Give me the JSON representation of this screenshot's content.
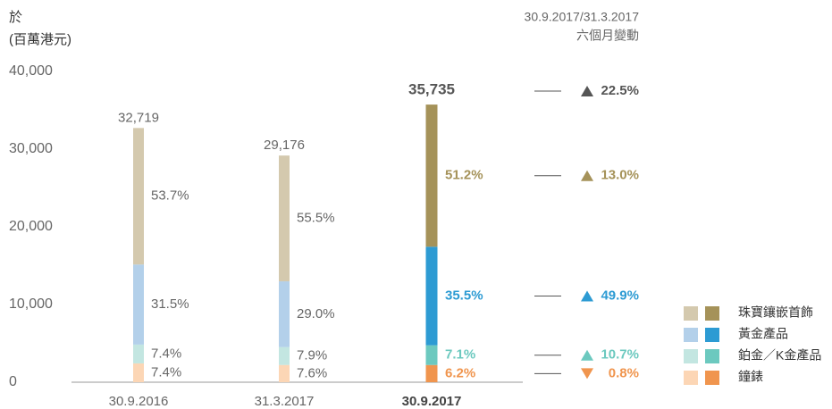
{
  "chart_data": {
    "type": "stacked_bar",
    "ylabel": [
      "於",
      "(百萬港元)"
    ],
    "categories": [
      "30.9.2016",
      "31.3.2017",
      "30.9.2017"
    ],
    "highlight": 2,
    "ylim": [
      0,
      40000
    ],
    "yticks": [
      0,
      {
        "value": 10000,
        "label": "10,000"
      },
      {
        "value": 20000,
        "label": "20,000"
      },
      {
        "value": 30000,
        "label": "30,000"
      },
      {
        "value": 40000,
        "label": "40,000"
      }
    ],
    "totals": {
      "values": [
        32719,
        29176,
        35735
      ],
      "value_labels": [
        "32,719",
        "29,176",
        "35,735"
      ],
      "change": 22.5,
      "change_label": "22.5%",
      "color": "#555555"
    },
    "change_title": [
      "30.9.2017/31.3.2017",
      "六個月變動"
    ],
    "series": [
      {
        "name": "鐘錶",
        "color": "#fcd6b5",
        "highlight_color": "#f0954e",
        "values": [
          7.4,
          7.6,
          6.2
        ],
        "value_labels": [
          "7.4%",
          "7.6%",
          "6.2%"
        ],
        "change": -0.8,
        "change_label": "0.8%"
      },
      {
        "name": "鉑金／K金產品",
        "color": "#c3e6e1",
        "highlight_color": "#6cc9bf",
        "values": [
          7.4,
          7.9,
          7.1
        ],
        "value_labels": [
          "7.4%",
          "7.9%",
          "7.1%"
        ],
        "change": 10.7,
        "change_label": "10.7%"
      },
      {
        "name": "黃金產品",
        "color": "#b3d0ea",
        "highlight_color": "#2d9bd3",
        "values": [
          31.5,
          29.0,
          35.5
        ],
        "value_labels": [
          "31.5%",
          "29.0%",
          "35.5%"
        ],
        "change": 49.9,
        "change_label": "49.9%"
      },
      {
        "name": "珠寶鑲嵌首飾",
        "color": "#d4c9ae",
        "highlight_color": "#a59259",
        "values": [
          53.7,
          55.5,
          51.2
        ],
        "value_labels": [
          "53.7%",
          "55.5%",
          "51.2%"
        ],
        "change": 13.0,
        "change_label": "13.0%"
      }
    ]
  }
}
